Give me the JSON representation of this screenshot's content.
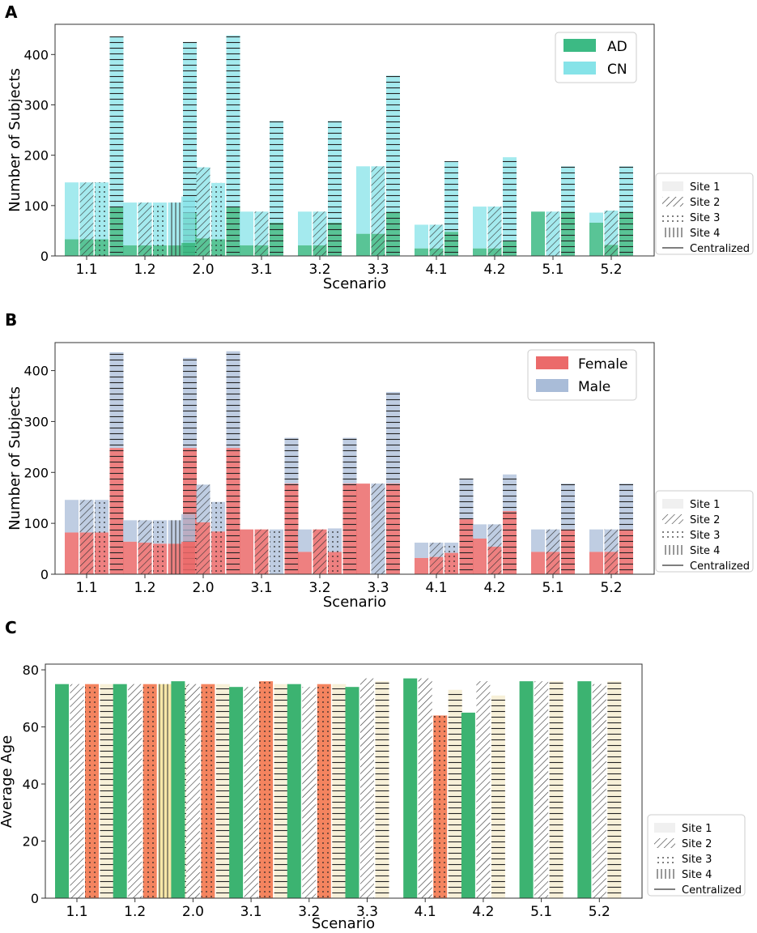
{
  "colors": {
    "ad": "#3cba84",
    "cn": "#86e3e8",
    "female": "#eb6a6a",
    "male": "#a9bcd8",
    "age_site1": "#3cb371",
    "age_site2": "#ffffff",
    "age_site3": "#f4845f",
    "age_central": "#f7f0d8",
    "age_site4": "#f7e7a8",
    "axis": "#333333"
  },
  "legend_sites": [
    "Site 1",
    "Site 2",
    "Site 3",
    "Site 4",
    "Centralized"
  ],
  "chart_data": [
    {
      "panel": "A",
      "type": "bar",
      "stacked": true,
      "xlabel": "Scenario",
      "ylabel": "Number of Subjects",
      "ylim": [
        0,
        460
      ],
      "yticks": [
        0,
        100,
        200,
        300,
        400
      ],
      "legend": [
        "AD",
        "CN"
      ],
      "categories": [
        "1.1",
        "1.2",
        "2.0",
        "3.1",
        "3.2",
        "3.3",
        "4.1",
        "4.2",
        "5.1",
        "5.2"
      ],
      "groups": [
        {
          "scenario": "1.1",
          "bars": [
            {
              "site": "Site 1",
              "bottom": 33,
              "total": 146
            },
            {
              "site": "Site 2",
              "bottom": 33,
              "total": 146
            },
            {
              "site": "Site 3",
              "bottom": 33,
              "total": 146
            },
            {
              "site": "Centralized",
              "bottom": 97,
              "total": 436
            }
          ]
        },
        {
          "scenario": "1.2",
          "bars": [
            {
              "site": "Site 1",
              "bottom": 21,
              "total": 106
            },
            {
              "site": "Site 2",
              "bottom": 21,
              "total": 106
            },
            {
              "site": "Site 3",
              "bottom": 21,
              "total": 106
            },
            {
              "site": "Site 4",
              "bottom": 21,
              "total": 106
            },
            {
              "site": "Centralized",
              "bottom": 86,
              "total": 425
            }
          ]
        },
        {
          "scenario": "2.0",
          "bars": [
            {
              "site": "Site 1",
              "bottom": 26,
              "total": 118
            },
            {
              "site": "Site 2",
              "bottom": 35,
              "total": 176
            },
            {
              "site": "Site 3",
              "bottom": 33,
              "total": 145
            },
            {
              "site": "Centralized",
              "bottom": 97,
              "total": 438
            }
          ]
        },
        {
          "scenario": "3.1",
          "bars": [
            {
              "site": "Site 1",
              "bottom": 21,
              "total": 88
            },
            {
              "site": "Site 2",
              "bottom": 21,
              "total": 88
            },
            {
              "site": "Centralized",
              "bottom": 66,
              "total": 268
            }
          ]
        },
        {
          "scenario": "3.2",
          "bars": [
            {
              "site": "Site 1",
              "bottom": 21,
              "total": 88
            },
            {
              "site": "Site 2",
              "bottom": 21,
              "total": 88
            },
            {
              "site": "Centralized",
              "bottom": 66,
              "total": 268
            }
          ]
        },
        {
          "scenario": "3.3",
          "bars": [
            {
              "site": "Site 1",
              "bottom": 44,
              "total": 178
            },
            {
              "site": "Site 2",
              "bottom": 44,
              "total": 178
            },
            {
              "site": "Centralized",
              "bottom": 88,
              "total": 358
            }
          ]
        },
        {
          "scenario": "4.1",
          "bars": [
            {
              "site": "Site 1",
              "bottom": 15,
              "total": 62
            },
            {
              "site": "Site 2",
              "bottom": 15,
              "total": 62
            },
            {
              "site": "Centralized",
              "bottom": 48,
              "total": 188
            }
          ]
        },
        {
          "scenario": "4.2",
          "bars": [
            {
              "site": "Site 1",
              "bottom": 15,
              "total": 98
            },
            {
              "site": "Site 2",
              "bottom": 15,
              "total": 98
            },
            {
              "site": "Centralized",
              "bottom": 30,
              "total": 196
            }
          ]
        },
        {
          "scenario": "5.1",
          "bars": [
            {
              "site": "Site 1",
              "bottom": 88,
              "total": 88
            },
            {
              "site": "Site 2",
              "bottom": 0,
              "total": 88
            },
            {
              "site": "Centralized",
              "bottom": 88,
              "total": 178
            }
          ]
        },
        {
          "scenario": "5.2",
          "bars": [
            {
              "site": "Site 1",
              "bottom": 66,
              "total": 86
            },
            {
              "site": "Site 2",
              "bottom": 22,
              "total": 90
            },
            {
              "site": "Centralized",
              "bottom": 88,
              "total": 178
            }
          ]
        }
      ]
    },
    {
      "panel": "B",
      "type": "bar",
      "stacked": true,
      "xlabel": "Scenario",
      "ylabel": "Number of Subjects",
      "ylim": [
        0,
        455
      ],
      "yticks": [
        0,
        100,
        200,
        300,
        400
      ],
      "legend": [
        "Female",
        "Male"
      ],
      "categories": [
        "1.1",
        "1.2",
        "2.0",
        "3.1",
        "3.2",
        "3.3",
        "4.1",
        "4.2",
        "5.1",
        "5.2"
      ],
      "groups": [
        {
          "scenario": "1.1",
          "bars": [
            {
              "site": "Site 1",
              "bottom": 82,
              "total": 146
            },
            {
              "site": "Site 2",
              "bottom": 82,
              "total": 146
            },
            {
              "site": "Site 3",
              "bottom": 82,
              "total": 146
            },
            {
              "site": "Centralized",
              "bottom": 248,
              "total": 436
            }
          ]
        },
        {
          "scenario": "1.2",
          "bars": [
            {
              "site": "Site 1",
              "bottom": 64,
              "total": 106
            },
            {
              "site": "Site 2",
              "bottom": 62,
              "total": 106
            },
            {
              "site": "Site 3",
              "bottom": 60,
              "total": 106
            },
            {
              "site": "Site 4",
              "bottom": 60,
              "total": 106
            },
            {
              "site": "Centralized",
              "bottom": 248,
              "total": 425
            }
          ]
        },
        {
          "scenario": "2.0",
          "bars": [
            {
              "site": "Site 1",
              "bottom": 64,
              "total": 118
            },
            {
              "site": "Site 2",
              "bottom": 102,
              "total": 176
            },
            {
              "site": "Site 3",
              "bottom": 84,
              "total": 142
            },
            {
              "site": "Centralized",
              "bottom": 248,
              "total": 438
            }
          ]
        },
        {
          "scenario": "3.1",
          "bars": [
            {
              "site": "Site 1",
              "bottom": 88,
              "total": 88
            },
            {
              "site": "Site 2",
              "bottom": 88,
              "total": 88
            },
            {
              "site": "Site 3",
              "bottom": 0,
              "total": 88
            },
            {
              "site": "Centralized",
              "bottom": 178,
              "total": 268
            }
          ]
        },
        {
          "scenario": "3.2",
          "bars": [
            {
              "site": "Site 1",
              "bottom": 44,
              "total": 88
            },
            {
              "site": "Site 2",
              "bottom": 88,
              "total": 88
            },
            {
              "site": "Site 3",
              "bottom": 44,
              "total": 90
            },
            {
              "site": "Centralized",
              "bottom": 178,
              "total": 268
            }
          ]
        },
        {
          "scenario": "3.3",
          "bars": [
            {
              "site": "Site 1",
              "bottom": 178,
              "total": 178
            },
            {
              "site": "Site 2",
              "bottom": 0,
              "total": 178
            },
            {
              "site": "Centralized",
              "bottom": 178,
              "total": 358
            }
          ]
        },
        {
          "scenario": "4.1",
          "bars": [
            {
              "site": "Site 1",
              "bottom": 32,
              "total": 62
            },
            {
              "site": "Site 2",
              "bottom": 34,
              "total": 62
            },
            {
              "site": "Site 3",
              "bottom": 42,
              "total": 62
            },
            {
              "site": "Centralized",
              "bottom": 108,
              "total": 188
            }
          ]
        },
        {
          "scenario": "4.2",
          "bars": [
            {
              "site": "Site 1",
              "bottom": 70,
              "total": 98
            },
            {
              "site": "Site 2",
              "bottom": 54,
              "total": 98
            },
            {
              "site": "Centralized",
              "bottom": 124,
              "total": 196
            }
          ]
        },
        {
          "scenario": "5.1",
          "bars": [
            {
              "site": "Site 1",
              "bottom": 44,
              "total": 88
            },
            {
              "site": "Site 2",
              "bottom": 44,
              "total": 88
            },
            {
              "site": "Centralized",
              "bottom": 88,
              "total": 178
            }
          ]
        },
        {
          "scenario": "5.2",
          "bars": [
            {
              "site": "Site 1",
              "bottom": 44,
              "total": 88
            },
            {
              "site": "Site 2",
              "bottom": 44,
              "total": 88
            },
            {
              "site": "Centralized",
              "bottom": 88,
              "total": 178
            }
          ]
        }
      ]
    },
    {
      "panel": "C",
      "type": "bar",
      "stacked": false,
      "xlabel": "Scenario",
      "ylabel": "Average Age",
      "ylim": [
        0,
        82
      ],
      "yticks": [
        0,
        20,
        40,
        60,
        80
      ],
      "categories": [
        "1.1",
        "1.2",
        "2.0",
        "3.1",
        "3.2",
        "3.3",
        "4.1",
        "4.2",
        "5.1",
        "5.2"
      ],
      "groups": [
        {
          "scenario": "1.1",
          "bars": [
            {
              "site": "Site 1",
              "value": 75
            },
            {
              "site": "Site 2",
              "value": 75
            },
            {
              "site": "Site 3",
              "value": 75
            },
            {
              "site": "Centralized",
              "value": 75
            }
          ]
        },
        {
          "scenario": "1.2",
          "bars": [
            {
              "site": "Site 1",
              "value": 75
            },
            {
              "site": "Site 2",
              "value": 75
            },
            {
              "site": "Site 3",
              "value": 75
            },
            {
              "site": "Site 4",
              "value": 75
            },
            {
              "site": "Centralized",
              "value": 75
            }
          ]
        },
        {
          "scenario": "2.0",
          "bars": [
            {
              "site": "Site 1",
              "value": 76
            },
            {
              "site": "Site 2",
              "value": 75
            },
            {
              "site": "Site 3",
              "value": 75
            },
            {
              "site": "Centralized",
              "value": 75
            }
          ]
        },
        {
          "scenario": "3.1",
          "bars": [
            {
              "site": "Site 1",
              "value": 74
            },
            {
              "site": "Site 2",
              "value": 74
            },
            {
              "site": "Site 3",
              "value": 76
            },
            {
              "site": "Centralized",
              "value": 75
            }
          ]
        },
        {
          "scenario": "3.2",
          "bars": [
            {
              "site": "Site 1",
              "value": 75
            },
            {
              "site": "Site 2",
              "value": 74
            },
            {
              "site": "Site 3",
              "value": 75
            },
            {
              "site": "Centralized",
              "value": 75
            }
          ]
        },
        {
          "scenario": "3.3",
          "bars": [
            {
              "site": "Site 1",
              "value": 74
            },
            {
              "site": "Site 2",
              "value": 77
            },
            {
              "site": "Centralized",
              "value": 76
            }
          ]
        },
        {
          "scenario": "4.1",
          "bars": [
            {
              "site": "Site 1",
              "value": 77
            },
            {
              "site": "Site 2",
              "value": 77
            },
            {
              "site": "Site 3",
              "value": 64
            },
            {
              "site": "Centralized",
              "value": 73
            }
          ]
        },
        {
          "scenario": "4.2",
          "bars": [
            {
              "site": "Site 1",
              "value": 65
            },
            {
              "site": "Site 2",
              "value": 76
            },
            {
              "site": "Centralized",
              "value": 71
            }
          ]
        },
        {
          "scenario": "5.1",
          "bars": [
            {
              "site": "Site 1",
              "value": 76
            },
            {
              "site": "Site 2",
              "value": 76
            },
            {
              "site": "Centralized",
              "value": 76
            }
          ]
        },
        {
          "scenario": "5.2",
          "bars": [
            {
              "site": "Site 1",
              "value": 76
            },
            {
              "site": "Site 2",
              "value": 75
            },
            {
              "site": "Centralized",
              "value": 76
            }
          ]
        }
      ]
    }
  ]
}
